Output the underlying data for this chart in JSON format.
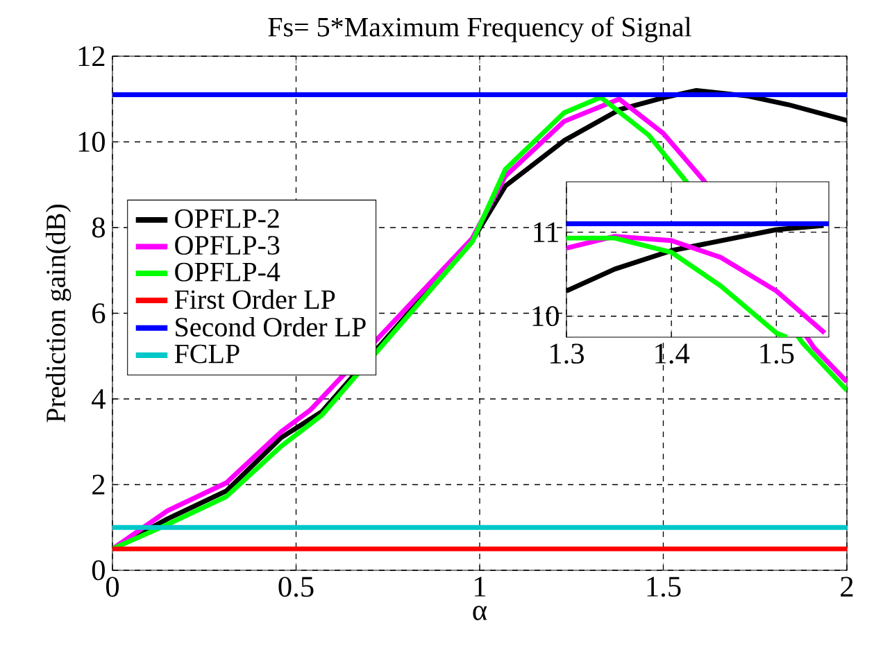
{
  "chart_data": [
    {
      "type": "line",
      "title": "Fs= 5*Maximum Frequency of Signal",
      "xlabel": "α",
      "ylabel": "Prediction gain(dB)",
      "xlim": [
        0,
        2
      ],
      "ylim": [
        0,
        12
      ],
      "xticks": [
        0,
        0.5,
        1,
        1.5,
        2
      ],
      "yticks": [
        0,
        2,
        4,
        6,
        8,
        10,
        12
      ],
      "grid": true,
      "legend": "left",
      "marker": "none",
      "line_style": "solid",
      "series": [
        {
          "name": "OPFLP-2",
          "color": "#000000",
          "x": [
            0,
            0.15,
            0.31,
            0.46,
            0.57,
            0.98,
            1.07,
            1.23,
            1.38,
            1.5,
            1.59,
            1.73,
            1.84,
            2
          ],
          "values": [
            0.5,
            1.2,
            1.85,
            3.1,
            3.7,
            7.7,
            8.97,
            10.03,
            10.75,
            11.03,
            11.2,
            11.07,
            10.87,
            10.5
          ]
        },
        {
          "name": "OPFLP-3",
          "color": "#ff00ff",
          "x": [
            0,
            0.15,
            0.31,
            0.46,
            0.54,
            0.98,
            1.07,
            1.23,
            1.38,
            1.5,
            1.61,
            1.91,
            2
          ],
          "values": [
            0.5,
            1.39,
            2.04,
            3.24,
            3.75,
            7.75,
            9.2,
            10.48,
            11.0,
            10.2,
            9.1,
            5.2,
            4.4
          ]
        },
        {
          "name": "OPFLP-4",
          "color": "#00ff00",
          "x": [
            0,
            0.15,
            0.31,
            0.46,
            0.57,
            0.98,
            1.07,
            1.23,
            1.33,
            1.46,
            1.56,
            1.88,
            2
          ],
          "values": [
            0.5,
            1.07,
            1.72,
            2.9,
            3.62,
            7.67,
            9.36,
            10.68,
            11.04,
            10.16,
            9.1,
            5.3,
            4.2
          ]
        },
        {
          "name": "First Order LP",
          "color": "#ff0000",
          "x": [
            0,
            2
          ],
          "values": [
            0.5,
            0.5
          ]
        },
        {
          "name": "Second Order LP",
          "color": "#0000ff",
          "x": [
            0,
            2
          ],
          "values": [
            11.1,
            11.1
          ]
        },
        {
          "name": "FCLP",
          "color": "#00c8c8",
          "x": [
            0,
            2
          ],
          "values": [
            1.0,
            1.0
          ]
        }
      ]
    },
    {
      "type": "line",
      "xlim": [
        1.3,
        1.55
      ],
      "ylim": [
        9.75,
        11.6
      ],
      "xticks": [
        1.3,
        1.4,
        1.5
      ],
      "yticks": [
        10,
        11
      ],
      "grid": true,
      "marker": "none",
      "line_style": "solid",
      "series": [
        {
          "color": "#000000",
          "x": [
            1.3,
            1.346,
            1.4,
            1.5,
            1.545
          ],
          "values": [
            10.3,
            10.56,
            10.78,
            11.03,
            11.08
          ]
        },
        {
          "color": "#ff00ff",
          "x": [
            1.3,
            1.346,
            1.4,
            1.447,
            1.5,
            1.546
          ],
          "values": [
            10.81,
            10.95,
            10.9,
            10.7,
            10.3,
            9.8
          ]
        },
        {
          "color": "#00ff00",
          "x": [
            1.3,
            1.346,
            1.4,
            1.447,
            1.5,
            1.51
          ],
          "values": [
            10.93,
            10.93,
            10.76,
            10.36,
            9.8,
            9.75
          ]
        },
        {
          "color": "#0000ff",
          "x": [
            1.3,
            1.55
          ],
          "values": [
            11.1,
            11.1
          ]
        }
      ]
    }
  ]
}
